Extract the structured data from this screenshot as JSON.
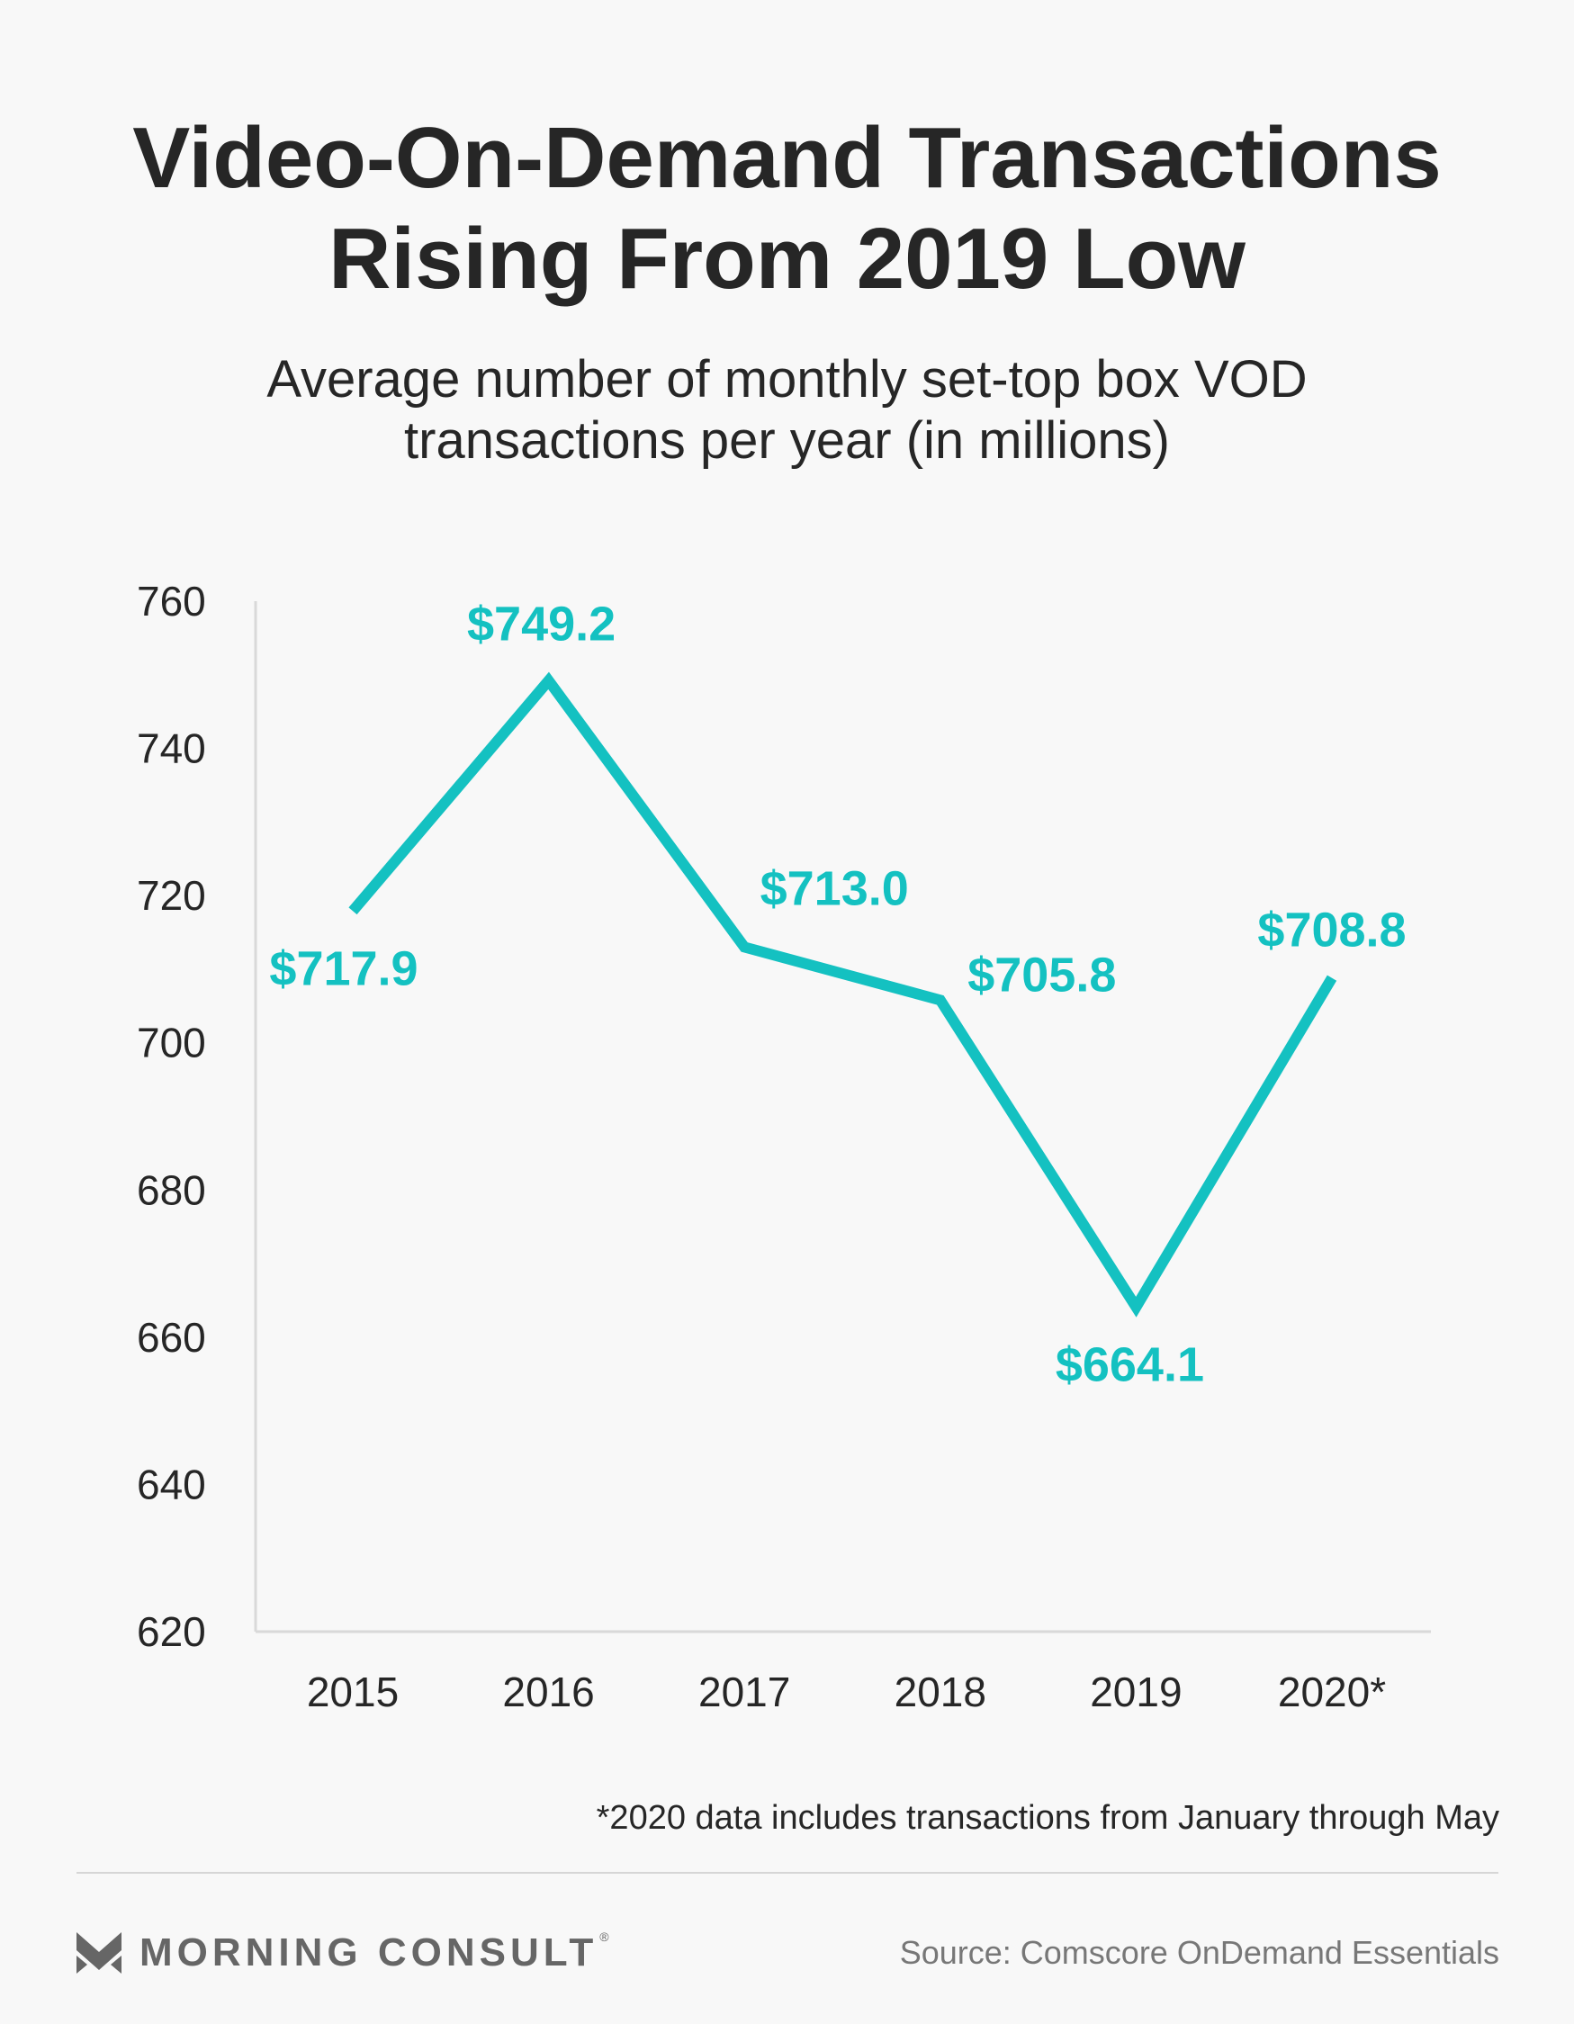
{
  "header": {
    "title_line1": "Video-On-Demand Transactions",
    "title_line2": "Rising From 2019 Low",
    "subtitle_line1": "Average number of monthly set-top box VOD",
    "subtitle_line2": "transactions per year (in millions)"
  },
  "chart_data": {
    "type": "line",
    "title": "Video-On-Demand Transactions Rising From 2019 Low",
    "subtitle": "Average number of monthly set-top box VOD transactions per year (in millions)",
    "xlabel": "",
    "ylabel": "",
    "categories": [
      "2015",
      "2016",
      "2017",
      "2018",
      "2019",
      "2020*"
    ],
    "series": [
      {
        "values": [
          717.9,
          749.2,
          713.0,
          705.8,
          664.1,
          708.8
        ],
        "labels": [
          "$717.9",
          "$749.2",
          "$713.0",
          "$705.8",
          "$664.1",
          "$708.8"
        ]
      }
    ],
    "ylim": [
      620,
      760
    ],
    "yticks": [
      760,
      740,
      720,
      700,
      680,
      660,
      640,
      620
    ],
    "grid": false,
    "legend": "none",
    "colors": {
      "line": "#14c1c1",
      "labels": "#14c1c1",
      "axis": "#d9d9d9",
      "text": "#262626"
    }
  },
  "footnote": "*2020 data includes transactions from January through May",
  "footer": {
    "brand": "MORNING CONSULT",
    "brand_mark": "®",
    "source": "Source: Comscore OnDemand Essentials"
  }
}
